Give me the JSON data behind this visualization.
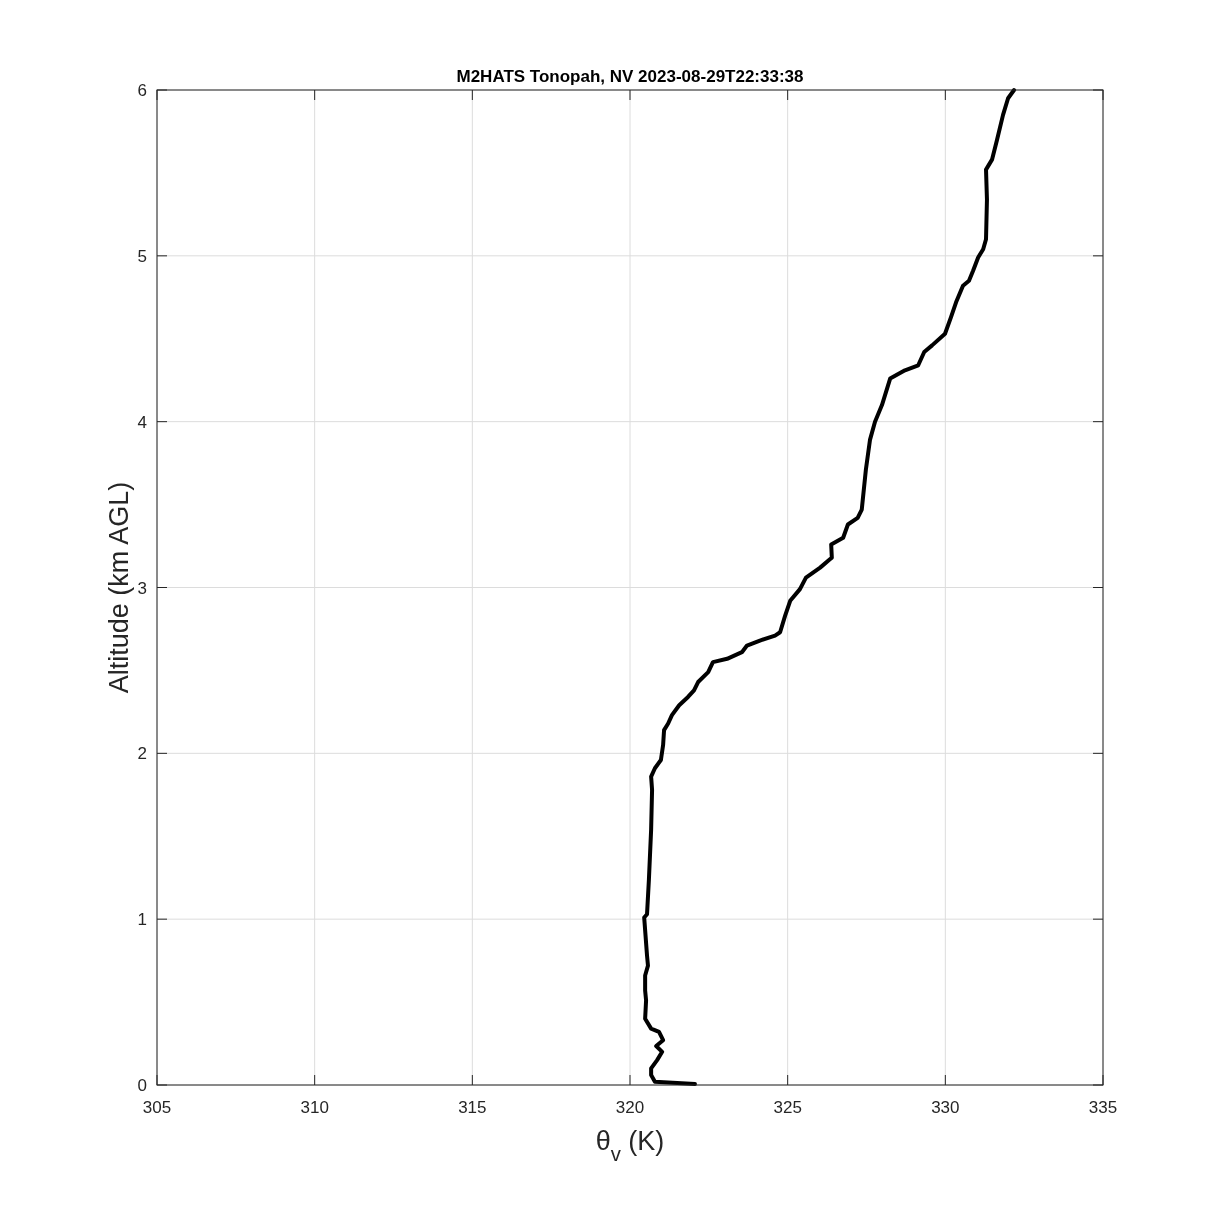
{
  "chart_data": {
    "type": "line",
    "title": "M2HATS Tonopah, NV 2023-08-29T22:33:38",
    "xlabel": "θ$_{v}$ (K)",
    "ylabel": "Altitude (km AGL)",
    "xlim": [
      305,
      335
    ],
    "xticks": [
      305,
      310,
      315,
      320,
      325,
      330,
      335
    ],
    "ylim": [
      0,
      6
    ],
    "yticks": [
      0,
      1,
      2,
      3,
      4,
      5,
      6
    ],
    "grid": true,
    "series": [
      {
        "color": "#000000",
        "x": [
          322.06,
          320.79,
          320.67,
          320.67,
          320.86,
          321.02,
          320.83,
          321.05,
          320.92,
          320.67,
          320.48,
          320.51,
          320.48,
          320.48,
          320.57,
          320.54,
          320.45,
          320.54,
          320.6,
          320.67,
          320.7,
          320.67,
          320.79,
          320.98,
          321.05,
          321.08,
          321.21,
          321.33,
          321.56,
          321.84,
          322.03,
          322.16,
          322.48,
          322.63,
          323.08,
          323.55,
          323.71,
          324.12,
          324.6,
          324.76,
          324.92,
          325.08,
          325.39,
          325.58,
          326.03,
          326.34,
          326.4,
          326.38,
          326.76,
          326.91,
          327.22,
          327.35,
          327.48,
          327.61,
          327.77,
          327.99,
          328.25,
          328.72,
          329.14,
          329.33,
          329.58,
          329.99,
          330.18,
          330.34,
          330.56,
          330.75,
          330.88,
          331.04,
          331.2,
          331.29,
          331.32,
          331.29,
          331.48,
          331.64,
          331.83,
          331.99,
          332.18
        ],
        "values": [
          0.006,
          0.02,
          0.06,
          0.1,
          0.15,
          0.2,
          0.235,
          0.27,
          0.32,
          0.34,
          0.4,
          0.51,
          0.57,
          0.66,
          0.72,
          0.78,
          1.01,
          1.03,
          1.24,
          1.54,
          1.78,
          1.86,
          1.91,
          1.96,
          2.05,
          2.14,
          2.18,
          2.23,
          2.29,
          2.34,
          2.38,
          2.43,
          2.49,
          2.55,
          2.57,
          2.61,
          2.65,
          2.68,
          2.71,
          2.73,
          2.83,
          2.92,
          2.99,
          3.06,
          3.12,
          3.17,
          3.18,
          3.26,
          3.3,
          3.38,
          3.42,
          3.47,
          3.71,
          3.89,
          4.0,
          4.1,
          4.26,
          4.31,
          4.34,
          4.42,
          4.46,
          4.53,
          4.63,
          4.72,
          4.82,
          4.85,
          4.91,
          4.99,
          5.04,
          5.1,
          5.34,
          5.52,
          5.58,
          5.7,
          5.85,
          5.95,
          6.0
        ]
      }
    ]
  }
}
